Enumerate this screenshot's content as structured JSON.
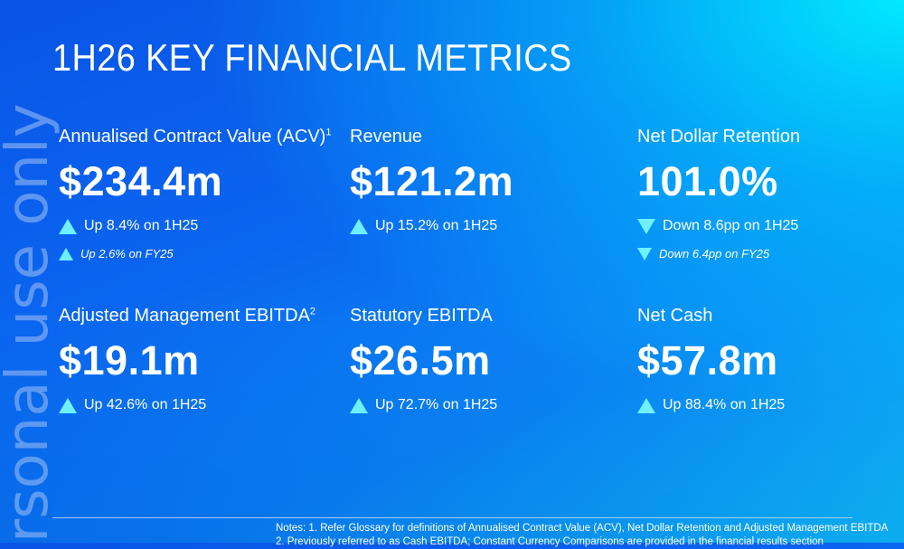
{
  "title": "1H26 KEY FINANCIAL METRICS",
  "watermark": "rsonal use only",
  "metrics": [
    {
      "label": "Annualised Contract Value (ACV)",
      "sup": "1",
      "value": "$234.4m",
      "changes": [
        {
          "dir": "up",
          "text": "Up 8.4% on 1H25"
        },
        {
          "dir": "up",
          "text": "Up 2.6% on FY25"
        }
      ]
    },
    {
      "label": "Revenue",
      "sup": "",
      "value": "$121.2m",
      "changes": [
        {
          "dir": "up",
          "text": "Up 15.2% on 1H25"
        }
      ]
    },
    {
      "label": "Net Dollar Retention",
      "sup": "",
      "value": "101.0%",
      "changes": [
        {
          "dir": "down",
          "text": "Down 8.6pp on 1H25"
        },
        {
          "dir": "down",
          "text": "Down 6.4pp on FY25"
        }
      ]
    },
    {
      "label": "Adjusted Management EBITDA",
      "sup": "2",
      "value": "$19.1m",
      "changes": [
        {
          "dir": "up",
          "text": "Up 42.6% on 1H25"
        }
      ]
    },
    {
      "label": "Statutory EBITDA",
      "sup": "",
      "value": "$26.5m",
      "changes": [
        {
          "dir": "up",
          "text": "Up 72.7% on 1H25"
        }
      ]
    },
    {
      "label": "Net Cash",
      "sup": "",
      "value": "$57.8m",
      "changes": [
        {
          "dir": "up",
          "text": "Up 88.4% on 1H25"
        }
      ]
    }
  ],
  "notes": [
    "Notes: 1. Refer Glossary for definitions of Annualised Contract Value (ACV), Net Dollar Retention and Adjusted Management EBITDA",
    "2. Previously referred to as Cash EBITDA; Constant Currency Comparisons are provided in the financial results section"
  ],
  "colors": {
    "accent": "#6ff0ff"
  }
}
